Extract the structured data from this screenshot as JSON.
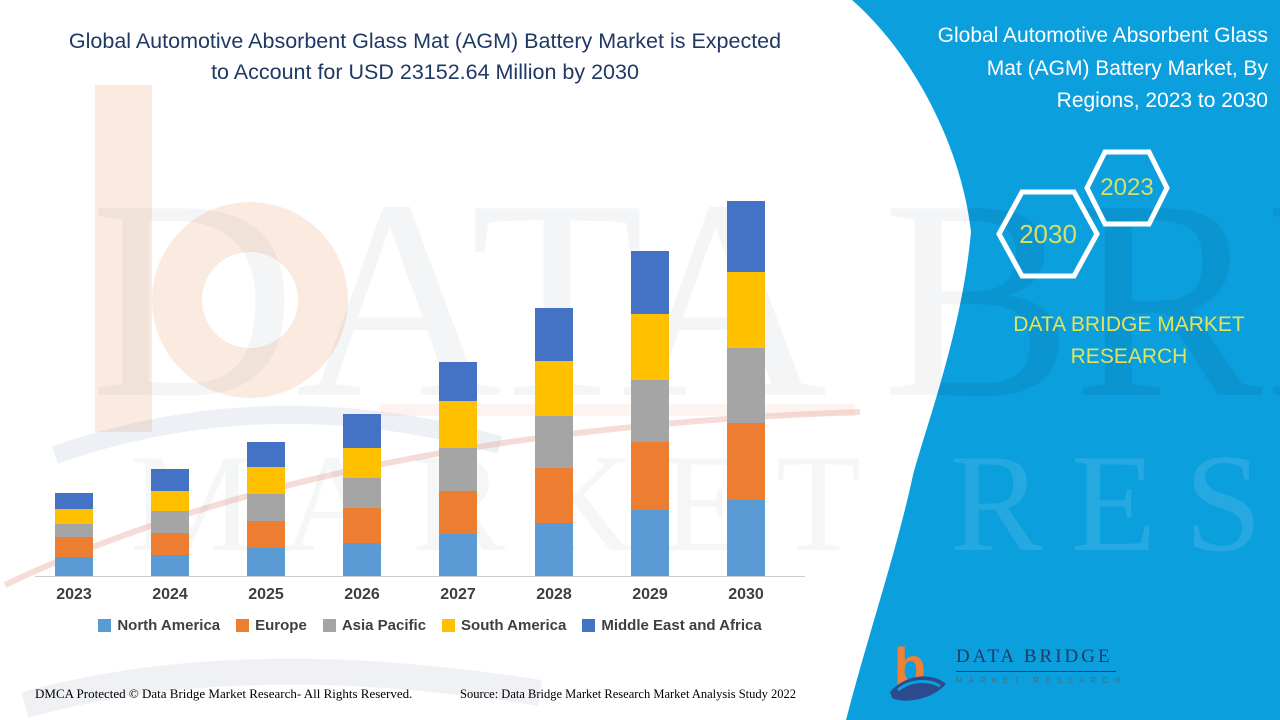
{
  "page": {
    "title_line1": "Global Automotive Absorbent Glass Mat (AGM) Battery Market is Expected",
    "title_line2": "to Account for USD 23152.64 Million by 2030"
  },
  "side_panel": {
    "title_line1": "Global Automotive Absorbent Glass",
    "title_line2": "Mat (AGM) Battery Market, By",
    "title_line3": "Regions, 2023 to 2030",
    "hexagon_back_year": "2030",
    "hexagon_front_year": "2023",
    "brand_line1": "DATA BRIDGE MARKET",
    "brand_line2": "RESEARCH",
    "panel_color": "#0C9FDD",
    "accent_text_color": "#D9DE66"
  },
  "watermark": {
    "row1": "DATA BRIDGE",
    "row2": "MARKET RESEARCH"
  },
  "chart_data": {
    "type": "bar",
    "stacked": true,
    "title": "Global Automotive Absorbent Glass Mat (AGM) Battery Market, By Regions, 2023 to 2030",
    "unit": "USD Million",
    "categories": [
      "2023",
      "2024",
      "2025",
      "2026",
      "2027",
      "2028",
      "2029",
      "2030"
    ],
    "series": [
      {
        "name": "North America",
        "color": "#5B9BD5",
        "values": [
          1180,
          1310,
          1750,
          2070,
          2630,
          3320,
          4070,
          4694
        ]
      },
      {
        "name": "Europe",
        "color": "#ED7D31",
        "values": [
          1250,
          1380,
          1690,
          2190,
          2690,
          3440,
          4190,
          4756
        ]
      },
      {
        "name": "Asia Pacific",
        "color": "#A5A5A5",
        "values": [
          810,
          1380,
          1690,
          1880,
          2690,
          3250,
          3820,
          4631
        ]
      },
      {
        "name": "South America",
        "color": "#FFC000",
        "values": [
          940,
          1250,
          1690,
          1880,
          2940,
          3440,
          4070,
          4694
        ]
      },
      {
        "name": "Middle East and Africa",
        "color": "#4472C4",
        "values": [
          1000,
          1380,
          1560,
          2130,
          2440,
          3320,
          3940,
          4377.64
        ]
      }
    ],
    "totals_2030": 23152.64,
    "ylim": [
      0,
      23152.64
    ],
    "grid": false,
    "legend_position": "bottom",
    "xlabel": "",
    "ylabel": ""
  },
  "footer": {
    "left": "DMCA Protected © Data Bridge Market Research- All Rights Reserved.",
    "right": "Source: Data Bridge Market Research Market Analysis Study 2022"
  },
  "logo": {
    "glyph": "b",
    "name": "DATA BRIDGE",
    "subtitle": "MARKET RESEARCH"
  },
  "colors": {
    "title_navy": "#1F3864",
    "axis_label_gray": "#3F3F3F",
    "axis_line": "#CCCCCC"
  }
}
